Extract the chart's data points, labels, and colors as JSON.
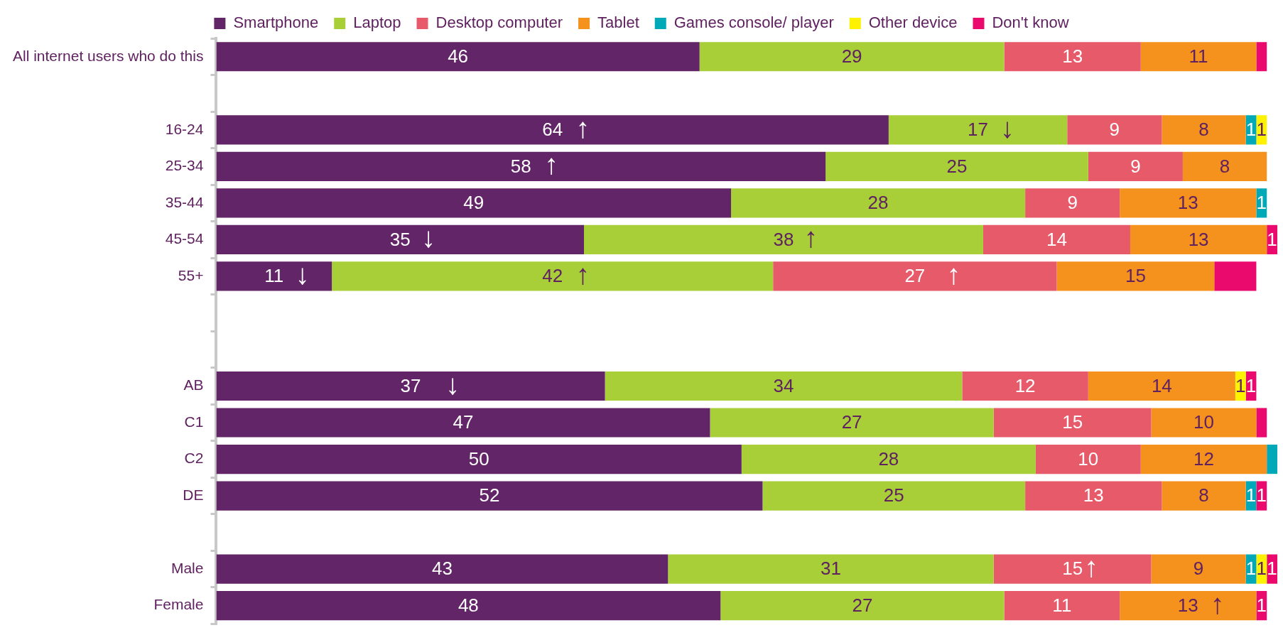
{
  "chart_data": {
    "type": "bar",
    "orientation": "horizontal",
    "stacked": true,
    "legend": "top",
    "categories": [
      "All internet users who do this",
      null,
      "16-24",
      "25-34",
      "35-44",
      "45-54",
      "55+",
      null,
      null,
      "AB",
      "C1",
      "C2",
      "DE",
      null,
      "Male",
      "Female"
    ],
    "series": [
      {
        "name": "Smartphone",
        "color": "#622567",
        "values": [
          46,
          null,
          64,
          58,
          49,
          35,
          11,
          null,
          null,
          37,
          47,
          50,
          52,
          null,
          43,
          48
        ],
        "value_labels": [
          "46",
          null,
          "64",
          "58",
          "49",
          "35",
          "11",
          null,
          null,
          "37",
          "47",
          "50",
          "52",
          null,
          "43",
          "48"
        ]
      },
      {
        "name": "Laptop",
        "color": "#a8cf38",
        "values": [
          29,
          null,
          17,
          25,
          28,
          38,
          42,
          null,
          null,
          34,
          27,
          28,
          25,
          null,
          31,
          27
        ],
        "value_labels": [
          "29",
          null,
          "17",
          "25",
          "28",
          "38",
          "42",
          null,
          null,
          "34",
          "27",
          "28",
          "25",
          null,
          "31",
          "27"
        ]
      },
      {
        "name": "Desktop computer",
        "color": "#e75a6a",
        "values": [
          13,
          null,
          9,
          9,
          9,
          14,
          27,
          null,
          null,
          12,
          15,
          10,
          13,
          null,
          15,
          11
        ],
        "value_labels": [
          "13",
          null,
          "9",
          "9",
          "9",
          "14",
          "27",
          null,
          null,
          "12",
          "15",
          "10",
          "13",
          null,
          "15",
          "11"
        ]
      },
      {
        "name": "Tablet",
        "color": "#f5921e",
        "values": [
          11,
          null,
          8,
          8,
          13,
          13,
          15,
          null,
          null,
          14,
          10,
          12,
          8,
          null,
          9,
          13
        ],
        "value_labels": [
          "11",
          null,
          "8",
          "8",
          "13",
          "13",
          "15",
          null,
          null,
          "14",
          "10",
          "12",
          "8",
          null,
          "9",
          "13"
        ]
      },
      {
        "name": "Games console/ player",
        "color": "#00a9b8",
        "values": [
          0,
          null,
          1,
          0,
          1,
          0,
          0,
          null,
          null,
          0,
          0,
          1,
          1,
          null,
          1,
          0
        ],
        "value_labels": [
          null,
          null,
          "1",
          null,
          "1",
          null,
          null,
          null,
          null,
          null,
          null,
          null,
          "1",
          null,
          "1",
          null
        ]
      },
      {
        "name": "Other device",
        "color": "#fff200",
        "values": [
          0,
          null,
          1,
          0,
          0,
          0,
          0,
          null,
          null,
          1,
          0,
          0,
          0,
          null,
          1,
          0
        ],
        "value_labels": [
          null,
          null,
          "1",
          null,
          null,
          null,
          null,
          null,
          null,
          "1",
          null,
          null,
          null,
          null,
          "1",
          null
        ]
      },
      {
        "name": "Don't know",
        "color": "#ea0a6e",
        "values": [
          1,
          null,
          0,
          0,
          0,
          1,
          4,
          null,
          null,
          1,
          1,
          0,
          1,
          null,
          1,
          1
        ],
        "value_labels": [
          null,
          null,
          null,
          null,
          null,
          "1",
          null,
          null,
          null,
          "1",
          null,
          null,
          "1",
          null,
          "1",
          "1"
        ]
      }
    ],
    "annotations": [
      {
        "text": "↑",
        "x": 34.9,
        "y": "16-24"
      },
      {
        "text": "↓",
        "x": 75.3,
        "y": "16-24"
      },
      {
        "text": "↑",
        "x": 31.9,
        "y": "25-34"
      },
      {
        "text": "↓",
        "x": 20.2,
        "y": "45-54"
      },
      {
        "text": "↑",
        "x": 56.6,
        "y": "45-54"
      },
      {
        "text": "↓",
        "x": 8.2,
        "y": "55+"
      },
      {
        "text": "↑",
        "x": 34.9,
        "y": "55+"
      },
      {
        "text": "↑",
        "x": 70.2,
        "y": "55+"
      },
      {
        "text": "↓",
        "x": 22.5,
        "y": "AB"
      },
      {
        "text": "↑",
        "x": 83.3,
        "y": "Male"
      },
      {
        "text": "↑",
        "x": 95.3,
        "y": "Female"
      }
    ]
  }
}
